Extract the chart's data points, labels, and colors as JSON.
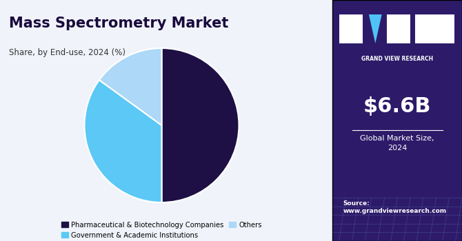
{
  "title": "Mass Spectrometry Market",
  "subtitle": "Share, by End-use, 2024 (%)",
  "pie_labels": [
    "Pharmaceutical & Biotechnology Companies",
    "Government & Academic Institutions",
    "Others"
  ],
  "pie_values": [
    50,
    35,
    15
  ],
  "pie_colors": [
    "#1e1045",
    "#5bc8f5",
    "#add8f7"
  ],
  "pie_startangle": 90,
  "legend_labels": [
    "Pharmaceutical & Biotechnology Companies",
    "Government & Academic Institutions",
    "Others"
  ],
  "legend_colors": [
    "#1e1045",
    "#5bc8f5",
    "#add8f7"
  ],
  "right_panel_bg": "#2d1b69",
  "right_panel_text_big": "$6.6B",
  "right_panel_text_small": "Global Market Size,\n2024",
  "right_panel_source": "Source:\nwww.grandviewresearch.com",
  "right_panel_brand": "GRAND VIEW RESEARCH",
  "left_bg": "#f0f4fa",
  "title_color": "#1a0a3c",
  "subtitle_color": "#333333"
}
